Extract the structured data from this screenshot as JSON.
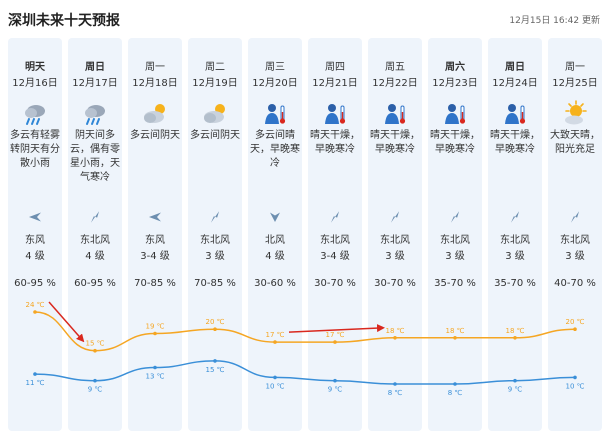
{
  "header": {
    "title": "深圳未来十天预报",
    "update": "12月15日 16:42 更新"
  },
  "colors": {
    "high": "#f5a623",
    "low": "#3a8fd8",
    "arrow": "#d9281e",
    "col_bg": "#eef4fb"
  },
  "days": [
    {
      "day": "明天",
      "bold": true,
      "date": "12月16日",
      "icon": "rain-icon",
      "desc": [
        "多云有轻雾",
        "转阴天有分",
        "散小雨"
      ],
      "wind_dir": "东风",
      "wind_lvl": "4 级",
      "humidity": "60-95 %",
      "high": "24 ℃",
      "low": "11 ℃"
    },
    {
      "day": "周日",
      "bold": true,
      "date": "12月17日",
      "icon": "rain-icon",
      "desc": [
        "阴天间多",
        "云，偶有零",
        "星小雨，天",
        "气寒冷"
      ],
      "wind_dir": "东北风",
      "wind_lvl": "4 级",
      "humidity": "60-95 %",
      "high": "15 ℃",
      "low": "9 ℃"
    },
    {
      "day": "周一",
      "bold": false,
      "date": "12月18日",
      "icon": "partly-cloudy-icon",
      "desc": [
        "多云间阴天"
      ],
      "wind_dir": "东风",
      "wind_lvl": "3-4 级",
      "humidity": "70-85 %",
      "high": "19 ℃",
      "low": "13 ℃"
    },
    {
      "day": "周二",
      "bold": false,
      "date": "12月19日",
      "icon": "partly-cloudy-icon",
      "desc": [
        "多云间阴天"
      ],
      "wind_dir": "东北风",
      "wind_lvl": "3 级",
      "humidity": "70-85 %",
      "high": "20 ℃",
      "low": "15 ℃"
    },
    {
      "day": "周三",
      "bold": false,
      "date": "12月20日",
      "icon": "cold-icon",
      "desc": [
        "多云间晴",
        "天，早晚寒",
        "冷"
      ],
      "wind_dir": "北风",
      "wind_lvl": "4 级",
      "humidity": "30-60 %",
      "high": "17 ℃",
      "low": "10 ℃"
    },
    {
      "day": "周四",
      "bold": false,
      "date": "12月21日",
      "icon": "cold-icon",
      "desc": [
        "晴天干燥，",
        "早晚寒冷"
      ],
      "wind_dir": "东北风",
      "wind_lvl": "3-4 级",
      "humidity": "30-70 %",
      "high": "17 ℃",
      "low": "9 ℃"
    },
    {
      "day": "周五",
      "bold": false,
      "date": "12月22日",
      "icon": "cold-icon",
      "desc": [
        "晴天干燥，",
        "早晚寒冷"
      ],
      "wind_dir": "东北风",
      "wind_lvl": "3 级",
      "humidity": "30-70 %",
      "high": "18 ℃",
      "low": "8 ℃"
    },
    {
      "day": "周六",
      "bold": true,
      "date": "12月23日",
      "icon": "cold-icon",
      "desc": [
        "晴天干燥，",
        "早晚寒冷"
      ],
      "wind_dir": "东北风",
      "wind_lvl": "3 级",
      "humidity": "35-70 %",
      "high": "18 ℃",
      "low": "8 ℃"
    },
    {
      "day": "周日",
      "bold": true,
      "date": "12月24日",
      "icon": "cold-icon",
      "desc": [
        "晴天干燥，",
        "早晚寒冷"
      ],
      "wind_dir": "东北风",
      "wind_lvl": "3 级",
      "humidity": "35-70 %",
      "high": "18 ℃",
      "low": "9 ℃"
    },
    {
      "day": "周一",
      "bold": false,
      "date": "12月25日",
      "icon": "sunny-cloudy-icon",
      "desc": [
        "大致天晴，",
        "阳光充足"
      ],
      "wind_dir": "东北风",
      "wind_lvl": "3 级",
      "humidity": "40-70 %",
      "high": "20 ℃",
      "low": "10 ℃"
    }
  ],
  "chart_data": {
    "type": "line",
    "categories": [
      "12月16日",
      "12月17日",
      "12月18日",
      "12月19日",
      "12月20日",
      "12月21日",
      "12月22日",
      "12月23日",
      "12月24日",
      "12月25日"
    ],
    "series": [
      {
        "values": [
          24,
          15,
          19,
          20,
          17,
          17,
          18,
          18,
          18,
          20
        ]
      },
      {
        "values": [
          11,
          9,
          13,
          15,
          10,
          9,
          8,
          8,
          9,
          10
        ]
      }
    ],
    "ylim": [
      8,
      24
    ],
    "annotations": [
      {
        "type": "arrow",
        "from_category": "12月16日",
        "from_value": 24,
        "to_category": "12月17日",
        "to_value": 15
      },
      {
        "type": "arrow",
        "from_category": "12月20日",
        "from_value": 17,
        "to_category": "12月22日",
        "to_value": 18
      }
    ]
  }
}
